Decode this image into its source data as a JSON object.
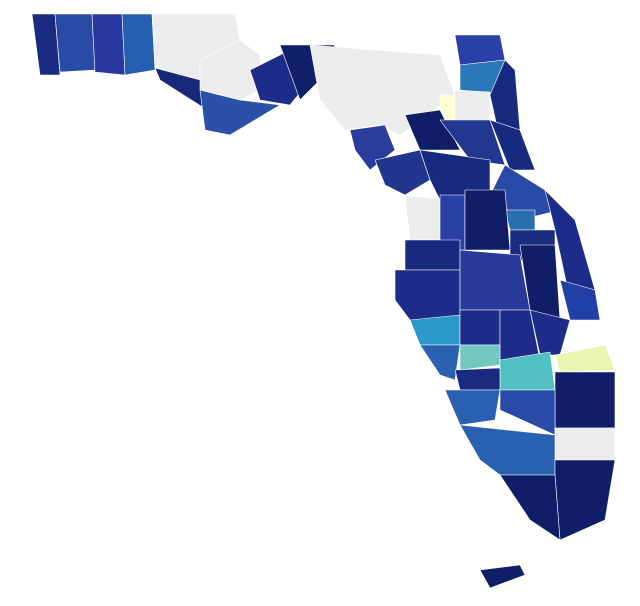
{
  "map": {
    "regions": [
      {
        "color": "#1a2a80"
      },
      {
        "color": "#2a4aa8"
      },
      {
        "color": "#2838a0"
      },
      {
        "color": "#2560b0"
      },
      {
        "color": "#ececec"
      },
      {
        "color": "#182878"
      },
      {
        "color": "#2a50a8"
      },
      {
        "color": "#ececec"
      },
      {
        "color": "#1c2c88"
      },
      {
        "color": "#101f6a"
      },
      {
        "color": "#ececec"
      },
      {
        "color": "#2a40a8"
      },
      {
        "color": "#2a78b8"
      },
      {
        "color": "#ffffd4"
      },
      {
        "color": "#ececec"
      },
      {
        "color": "#182a80"
      },
      {
        "color": "#2a3c9c"
      },
      {
        "color": "#101e68"
      },
      {
        "color": "#223890"
      },
      {
        "color": "#182a80"
      },
      {
        "color": "#22368e"
      },
      {
        "color": "#182a80"
      },
      {
        "color": "#2a4aa8"
      },
      {
        "color": "#2a70b0"
      },
      {
        "color": "#ececec"
      },
      {
        "color": "#2a40a8"
      },
      {
        "color": "#101e68"
      },
      {
        "color": "#1c2c88"
      },
      {
        "color": "#1a2c80"
      },
      {
        "color": "#182a80"
      },
      {
        "color": "#1c2c88"
      },
      {
        "color": "#2a3a9a"
      },
      {
        "color": "#101e68"
      },
      {
        "color": "#2040a8"
      },
      {
        "color": "#2a98c8"
      },
      {
        "color": "#1c2c88"
      },
      {
        "color": "#1c2c88"
      },
      {
        "color": "#1c2c88"
      },
      {
        "color": "#2a60b0"
      },
      {
        "color": "#70c8c0"
      },
      {
        "color": "#50c0c0"
      },
      {
        "color": "#e8f6b0"
      },
      {
        "color": "#1a2a80"
      },
      {
        "color": "#101e68"
      },
      {
        "color": "#2a60b0"
      },
      {
        "color": "#2a4aa8"
      },
      {
        "color": "#ececec"
      },
      {
        "color": "#2a60b0"
      },
      {
        "color": "#101e68"
      },
      {
        "color": "#101e68"
      },
      {
        "color": "#101e68"
      }
    ]
  }
}
